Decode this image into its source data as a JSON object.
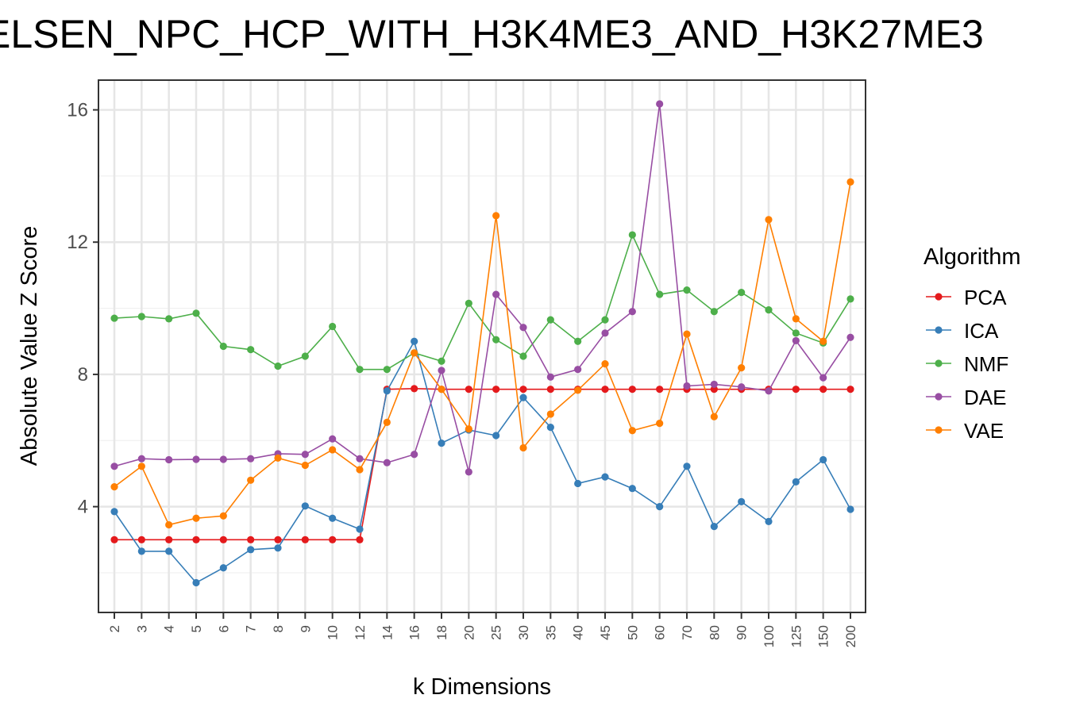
{
  "chart_data": {
    "type": "line",
    "title": "ELSEN_NPC_HCP_WITH_H3K4ME3_AND_H3K27ME3",
    "xlabel": "k Dimensions",
    "ylabel": "Absolute Value Z Score",
    "ylim": [
      0.8,
      16.9
    ],
    "yticks": [
      4,
      8,
      12,
      16
    ],
    "grid": true,
    "legend_title": "Algorithm",
    "legend_position": "right",
    "categories": [
      "2",
      "3",
      "4",
      "5",
      "6",
      "7",
      "8",
      "9",
      "10",
      "12",
      "14",
      "16",
      "18",
      "20",
      "25",
      "30",
      "35",
      "40",
      "45",
      "50",
      "60",
      "70",
      "80",
      "90",
      "100",
      "125",
      "150",
      "200"
    ],
    "series": [
      {
        "name": "PCA",
        "color": "#e41a1c",
        "values": [
          3.0,
          3.0,
          3.0,
          3.0,
          3.0,
          3.0,
          3.0,
          3.0,
          3.0,
          3.0,
          7.55,
          7.57,
          7.55,
          7.55,
          7.55,
          7.55,
          7.55,
          7.55,
          7.55,
          7.55,
          7.55,
          7.55,
          7.55,
          7.55,
          7.55,
          7.55,
          7.55,
          7.55
        ]
      },
      {
        "name": "ICA",
        "color": "#377eb8",
        "values": [
          3.85,
          2.65,
          2.65,
          1.7,
          2.15,
          2.7,
          2.75,
          4.02,
          3.65,
          3.32,
          7.5,
          9.0,
          5.92,
          6.32,
          6.15,
          7.3,
          6.4,
          4.7,
          4.9,
          4.55,
          4.0,
          5.22,
          3.4,
          4.15,
          3.55,
          4.75,
          5.42,
          3.92
        ]
      },
      {
        "name": "NMF",
        "color": "#4daf4a",
        "values": [
          9.7,
          9.75,
          9.68,
          9.85,
          8.85,
          8.75,
          8.25,
          8.55,
          9.45,
          8.15,
          8.15,
          8.65,
          8.4,
          10.15,
          9.05,
          8.55,
          9.65,
          9.0,
          9.65,
          12.22,
          10.42,
          10.55,
          9.9,
          10.48,
          9.95,
          9.25,
          8.95,
          10.28
        ]
      },
      {
        "name": "DAE",
        "color": "#984ea3",
        "values": [
          5.22,
          5.45,
          5.42,
          5.43,
          5.43,
          5.45,
          5.6,
          5.58,
          6.05,
          5.45,
          5.33,
          5.58,
          8.12,
          5.05,
          10.42,
          9.42,
          7.92,
          8.15,
          9.25,
          9.9,
          16.18,
          7.65,
          7.7,
          7.62,
          7.5,
          9.02,
          7.9,
          9.12
        ]
      },
      {
        "name": "VAE",
        "color": "#ff7f00",
        "values": [
          4.6,
          5.22,
          3.45,
          3.65,
          3.72,
          4.8,
          5.47,
          5.25,
          5.72,
          5.12,
          6.55,
          8.65,
          7.55,
          6.35,
          12.8,
          5.78,
          6.8,
          7.52,
          8.32,
          6.3,
          6.52,
          9.22,
          6.72,
          8.2,
          12.68,
          9.68,
          9.0,
          13.82
        ]
      }
    ]
  }
}
